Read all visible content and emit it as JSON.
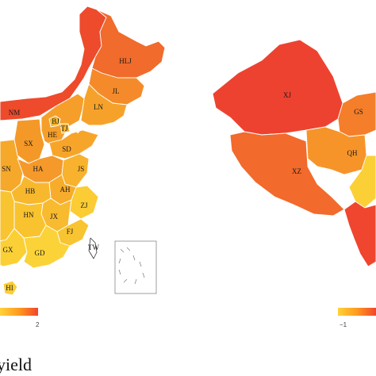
{
  "caption": "yield",
  "legend_left": {
    "tick_right": "2",
    "colors": [
      "#ffd23a",
      "#ff9a1f",
      "#f0452e"
    ]
  },
  "legend_right": {
    "tick_left": "−1",
    "colors": [
      "#ffd23a",
      "#ff9a1f",
      "#f0452e"
    ]
  },
  "map_left": {
    "provinces": [
      {
        "code": "HLJ",
        "color": "#f06b2c"
      },
      {
        "code": "JL",
        "color": "#f58a2a"
      },
      {
        "code": "LN",
        "color": "#f6a22a"
      },
      {
        "code": "NM",
        "color": "#ee4a2c"
      },
      {
        "code": "BJ",
        "color": "#f7b62e"
      },
      {
        "code": "TJ",
        "color": "#f7b42e"
      },
      {
        "code": "HE",
        "color": "#f59f2a"
      },
      {
        "code": "SX",
        "color": "#f49928"
      },
      {
        "code": "SD",
        "color": "#f7a52a"
      },
      {
        "code": "SN",
        "color": "#f6a82b"
      },
      {
        "code": "HA",
        "color": "#f5992a"
      },
      {
        "code": "JS",
        "color": "#f8b22d"
      },
      {
        "code": "HB",
        "color": "#f8b82e"
      },
      {
        "code": "AH",
        "color": "#f7ac2b"
      },
      {
        "code": "ZJ",
        "color": "#fbcc33"
      },
      {
        "code": "HN",
        "color": "#f9c32f"
      },
      {
        "code": "JX",
        "color": "#f8bb2f"
      },
      {
        "code": "FJ",
        "color": "#f9c431"
      },
      {
        "code": "GX",
        "color": "#fbd036"
      },
      {
        "code": "GD",
        "color": "#fbd338"
      },
      {
        "code": "HI",
        "color": "#fbcf36"
      },
      {
        "code": "TW",
        "color": "#ffffff"
      }
    ]
  },
  "map_right": {
    "provinces": [
      {
        "code": "XJ",
        "color": "#ee4230"
      },
      {
        "code": "GS",
        "color": "#f47e2a"
      },
      {
        "code": "QH",
        "color": "#f6942a"
      },
      {
        "code": "XZ",
        "color": "#f26a2c"
      }
    ]
  }
}
